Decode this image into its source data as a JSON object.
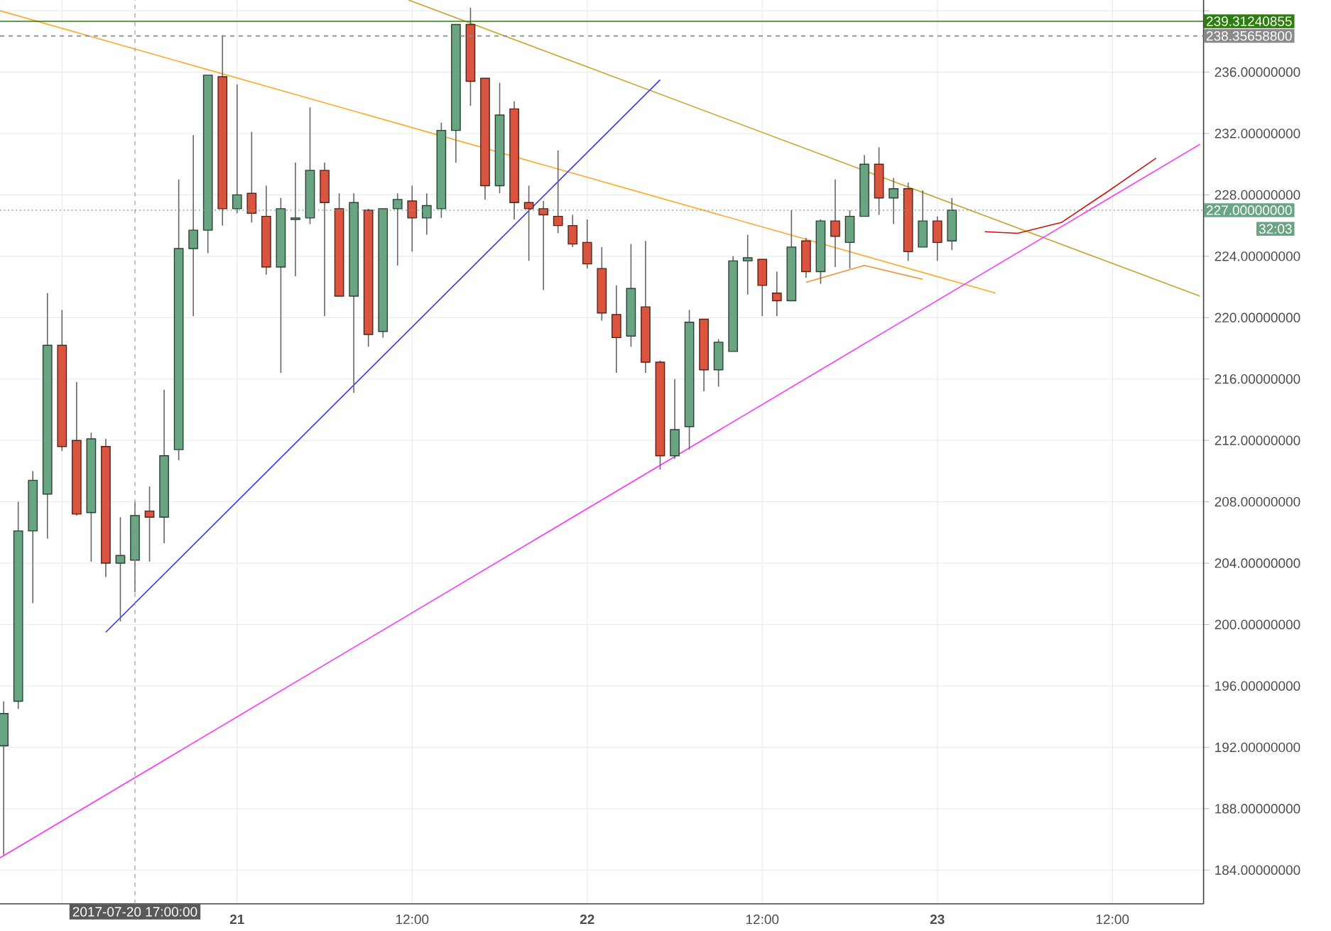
{
  "chart_data": {
    "type": "candlestick",
    "grid": true,
    "xlim": [
      "2017-07-20T07:45",
      "2017-07-23T18:15"
    ],
    "ylim": [
      181.8,
      240.7
    ],
    "xticks": [
      {
        "value": "2017-07-20T12:00",
        "label": null
      },
      {
        "value": "2017-07-21T00:00",
        "label": "21"
      },
      {
        "value": "2017-07-21T12:00",
        "label": "12:00"
      },
      {
        "value": "2017-07-22T00:00",
        "label": "22"
      },
      {
        "value": "2017-07-22T12:00",
        "label": "12:00"
      },
      {
        "value": "2017-07-23T00:00",
        "label": "23"
      },
      {
        "value": "2017-07-23T12:00",
        "label": "12:00"
      }
    ],
    "yticks": [
      {
        "value": 184,
        "label": "184.00000000"
      },
      {
        "value": 188,
        "label": "188.00000000"
      },
      {
        "value": 192,
        "label": "192.00000000"
      },
      {
        "value": 196,
        "label": "196.00000000"
      },
      {
        "value": 200,
        "label": "200.00000000"
      },
      {
        "value": 204,
        "label": "204.00000000"
      },
      {
        "value": 208,
        "label": "208.00000000"
      },
      {
        "value": 212,
        "label": "212.00000000"
      },
      {
        "value": 216,
        "label": "216.00000000"
      },
      {
        "value": 220,
        "label": "220.00000000"
      },
      {
        "value": 224,
        "label": "224.00000000"
      },
      {
        "value": 228,
        "label": "228.00000000"
      },
      {
        "value": 232,
        "label": "232.00000000"
      },
      {
        "value": 236,
        "label": "236.00000000"
      },
      {
        "value": 240,
        "label": null
      }
    ],
    "x": [
      "2017-07-20T08:00",
      "2017-07-20T09:00",
      "2017-07-20T10:00",
      "2017-07-20T11:00",
      "2017-07-20T12:00",
      "2017-07-20T13:00",
      "2017-07-20T14:00",
      "2017-07-20T15:00",
      "2017-07-20T16:00",
      "2017-07-20T17:00",
      "2017-07-20T18:00",
      "2017-07-20T19:00",
      "2017-07-20T20:00",
      "2017-07-20T21:00",
      "2017-07-20T22:00",
      "2017-07-20T23:00",
      "2017-07-21T00:00",
      "2017-07-21T01:00",
      "2017-07-21T02:00",
      "2017-07-21T03:00",
      "2017-07-21T04:00",
      "2017-07-21T05:00",
      "2017-07-21T06:00",
      "2017-07-21T07:00",
      "2017-07-21T08:00",
      "2017-07-21T09:00",
      "2017-07-21T10:00",
      "2017-07-21T11:00",
      "2017-07-21T12:00",
      "2017-07-21T13:00",
      "2017-07-21T14:00",
      "2017-07-21T15:00",
      "2017-07-21T16:00",
      "2017-07-21T17:00",
      "2017-07-21T18:00",
      "2017-07-21T19:00",
      "2017-07-21T20:00",
      "2017-07-21T21:00",
      "2017-07-21T22:00",
      "2017-07-21T23:00",
      "2017-07-22T00:00",
      "2017-07-22T01:00",
      "2017-07-22T02:00",
      "2017-07-22T03:00",
      "2017-07-22T04:00",
      "2017-07-22T05:00",
      "2017-07-22T06:00",
      "2017-07-22T07:00",
      "2017-07-22T08:00",
      "2017-07-22T09:00",
      "2017-07-22T10:00",
      "2017-07-22T11:00",
      "2017-07-22T12:00",
      "2017-07-22T13:00",
      "2017-07-22T14:00",
      "2017-07-22T15:00",
      "2017-07-22T16:00",
      "2017-07-22T17:00",
      "2017-07-22T18:00",
      "2017-07-22T19:00",
      "2017-07-22T20:00",
      "2017-07-22T21:00",
      "2017-07-22T22:00",
      "2017-07-22T23:00",
      "2017-07-23T00:00",
      "2017-07-23T01:00"
    ],
    "series": [
      {
        "type": "line",
        "color": "#ffa726",
        "x": [
          "2017-07-20T07:45",
          "2017-07-23T04:00"
        ],
        "values": [
          240.0,
          221.6
        ]
      },
      {
        "type": "line",
        "color": "#c9a227",
        "x": [
          "2017-07-21T11:45",
          "2017-07-23T18:00"
        ],
        "values": [
          240.7,
          221.4
        ]
      },
      {
        "type": "line",
        "color": "#3333ff",
        "x": [
          "2017-07-20T15:00",
          "2017-07-22T05:00"
        ],
        "values": [
          199.5,
          235.5
        ]
      },
      {
        "type": "line",
        "color": "#ff33ff",
        "x": [
          "2017-07-20T07:45",
          "2017-07-23T18:00"
        ],
        "values": [
          184.8,
          231.3
        ]
      },
      {
        "type": "line",
        "color": "#f0923a",
        "x": [
          "2017-07-22T15:00",
          "2017-07-22T19:00",
          "2017-07-22T23:00"
        ],
        "values": [
          222.3,
          223.4,
          222.5
        ]
      },
      {
        "type": "line",
        "color": "#d01010",
        "x": [
          "2017-07-23T03:15",
          "2017-07-23T05:30",
          "2017-07-23T08:30",
          "2017-07-23T11:30",
          "2017-07-23T15:00"
        ],
        "values": [
          225.6,
          225.5,
          226.2,
          228.1,
          230.4
        ]
      },
      {
        "ohlc": [
          [
            192.1,
            195.0,
            185.0,
            194.2
          ],
          [
            195.0,
            208.0,
            194.5,
            206.1
          ],
          [
            206.1,
            210.0,
            201.4,
            209.4
          ],
          [
            208.5,
            221.6,
            205.6,
            218.2
          ],
          [
            218.2,
            220.5,
            211.3,
            211.6
          ],
          [
            212.0,
            215.8,
            207.1,
            207.2
          ],
          [
            207.3,
            212.5,
            204.1,
            212.1
          ],
          [
            211.6,
            212.1,
            203.1,
            204.0
          ],
          [
            204.0,
            207.0,
            200.2,
            204.5
          ],
          [
            204.2,
            208.0,
            202.1,
            207.1
          ],
          [
            207.4,
            209.0,
            204.1,
            207.0
          ],
          [
            207.0,
            215.3,
            205.3,
            211.0
          ],
          [
            211.4,
            229.0,
            210.7,
            224.5
          ],
          [
            224.5,
            231.9,
            220.1,
            225.7
          ],
          [
            225.7,
            235.8,
            224.2,
            235.8
          ],
          [
            235.7,
            238.4,
            226.0,
            227.1
          ],
          [
            227.1,
            235.2,
            226.8,
            228.0
          ],
          [
            228.1,
            232.1,
            226.2,
            226.8
          ],
          [
            226.6,
            228.6,
            222.8,
            223.3
          ],
          [
            223.3,
            227.8,
            216.4,
            227.1
          ],
          [
            226.4,
            230.1,
            222.7,
            226.5
          ],
          [
            226.5,
            233.7,
            226.1,
            229.6
          ],
          [
            229.6,
            230.1,
            220.1,
            227.5
          ],
          [
            227.1,
            228.1,
            221.4,
            221.4
          ],
          [
            221.4,
            228.1,
            215.1,
            227.5
          ],
          [
            227.0,
            227.1,
            218.1,
            218.9
          ],
          [
            219.1,
            227.1,
            218.7,
            227.1
          ],
          [
            227.1,
            228.1,
            223.4,
            227.7
          ],
          [
            227.6,
            228.6,
            224.3,
            226.5
          ],
          [
            226.5,
            228.1,
            225.4,
            227.3
          ],
          [
            227.1,
            232.7,
            226.5,
            232.2
          ],
          [
            232.2,
            239.1,
            230.1,
            239.1
          ],
          [
            239.1,
            240.2,
            233.8,
            235.4
          ],
          [
            235.6,
            235.6,
            227.7,
            228.6
          ],
          [
            228.6,
            235.3,
            228.1,
            233.2
          ],
          [
            233.6,
            234.1,
            226.4,
            227.5
          ],
          [
            227.5,
            228.6,
            223.7,
            227.1
          ],
          [
            227.1,
            227.6,
            221.8,
            226.7
          ],
          [
            226.6,
            230.9,
            225.5,
            226.0
          ],
          [
            226.0,
            226.7,
            224.6,
            224.8
          ],
          [
            224.9,
            226.4,
            223.2,
            223.5
          ],
          [
            223.2,
            224.6,
            219.8,
            220.3
          ],
          [
            220.2,
            222.1,
            216.4,
            218.7
          ],
          [
            218.8,
            224.8,
            218.1,
            221.9
          ],
          [
            220.7,
            225.0,
            216.4,
            217.1
          ],
          [
            217.1,
            217.2,
            210.1,
            211.0
          ],
          [
            211.0,
            216.0,
            210.8,
            212.7
          ],
          [
            212.9,
            220.5,
            211.4,
            219.7
          ],
          [
            219.9,
            219.9,
            215.2,
            216.6
          ],
          [
            216.6,
            218.6,
            215.5,
            218.4
          ],
          [
            217.8,
            224.0,
            217.8,
            223.7
          ],
          [
            223.7,
            225.4,
            221.5,
            223.9
          ],
          [
            223.8,
            223.8,
            220.1,
            222.1
          ],
          [
            221.6,
            223.0,
            220.1,
            221.1
          ],
          [
            221.1,
            227.0,
            221.1,
            224.6
          ],
          [
            225.0,
            225.2,
            222.6,
            223.0
          ],
          [
            223.0,
            226.4,
            222.2,
            226.3
          ],
          [
            226.3,
            229.0,
            223.3,
            225.3
          ],
          [
            224.9,
            227.0,
            223.2,
            226.6
          ],
          [
            226.6,
            230.6,
            226.6,
            230.0
          ],
          [
            230.0,
            231.1,
            226.7,
            227.8
          ],
          [
            227.8,
            229.1,
            226.1,
            228.4
          ],
          [
            228.4,
            228.8,
            223.7,
            224.3
          ],
          [
            224.6,
            228.3,
            224.6,
            226.3
          ],
          [
            226.3,
            226.6,
            223.7,
            224.9
          ],
          [
            225.0,
            227.8,
            224.4,
            227.0
          ]
        ],
        "colors": [
          "#6aa583",
          "#6aa583",
          "#6aa583",
          "#6aa583",
          "#d9553f",
          "#d9553f",
          "#6aa583",
          "#d9553f",
          "#6aa583",
          "#6aa583",
          "#d9553f",
          "#6aa583",
          "#6aa583",
          "#6aa583",
          "#6aa583",
          "#d9553f",
          "#6aa583",
          "#d9553f",
          "#d9553f",
          "#6aa583",
          "#6aa583",
          "#6aa583",
          "#d9553f",
          "#d9553f",
          "#6aa583",
          "#d9553f",
          "#6aa583",
          "#6aa583",
          "#d9553f",
          "#6aa583",
          "#6aa583",
          "#6aa583",
          "#d9553f",
          "#d9553f",
          "#6aa583",
          "#d9553f",
          "#d9553f",
          "#d9553f",
          "#d9553f",
          "#d9553f",
          "#d9553f",
          "#d9553f",
          "#d9553f",
          "#6aa583",
          "#d9553f",
          "#d9553f",
          "#6aa583",
          "#6aa583",
          "#d9553f",
          "#6aa583",
          "#6aa583",
          "#6aa583",
          "#d9553f",
          "#d9553f",
          "#6aa583",
          "#d9553f",
          "#6aa583",
          "#d9553f",
          "#6aa583",
          "#6aa583",
          "#d9553f",
          "#6aa583",
          "#d9553f",
          "#6aa583",
          "#d9553f",
          "#6aa583"
        ]
      }
    ],
    "ref_lines": [
      {
        "axis": "y",
        "value": 239.31240855,
        "label": "239.31240855",
        "color": "#2e7d0f",
        "line_style": "solid"
      },
      {
        "axis": "y",
        "value": 238.356588,
        "label": "238.35658800",
        "color": "#8a8a8a",
        "line_style": "dashed"
      },
      {
        "axis": "y",
        "value": 227,
        "label": "227.00000000",
        "color": "#6aa583",
        "line_style": "dotted"
      },
      {
        "axis": "x",
        "value": "2017-07-20T17:00",
        "label": "2017-07-20 17:00:00",
        "color": "#9a9a9a",
        "line_style": "dashed"
      }
    ],
    "annotations": [
      "32:03"
    ]
  }
}
